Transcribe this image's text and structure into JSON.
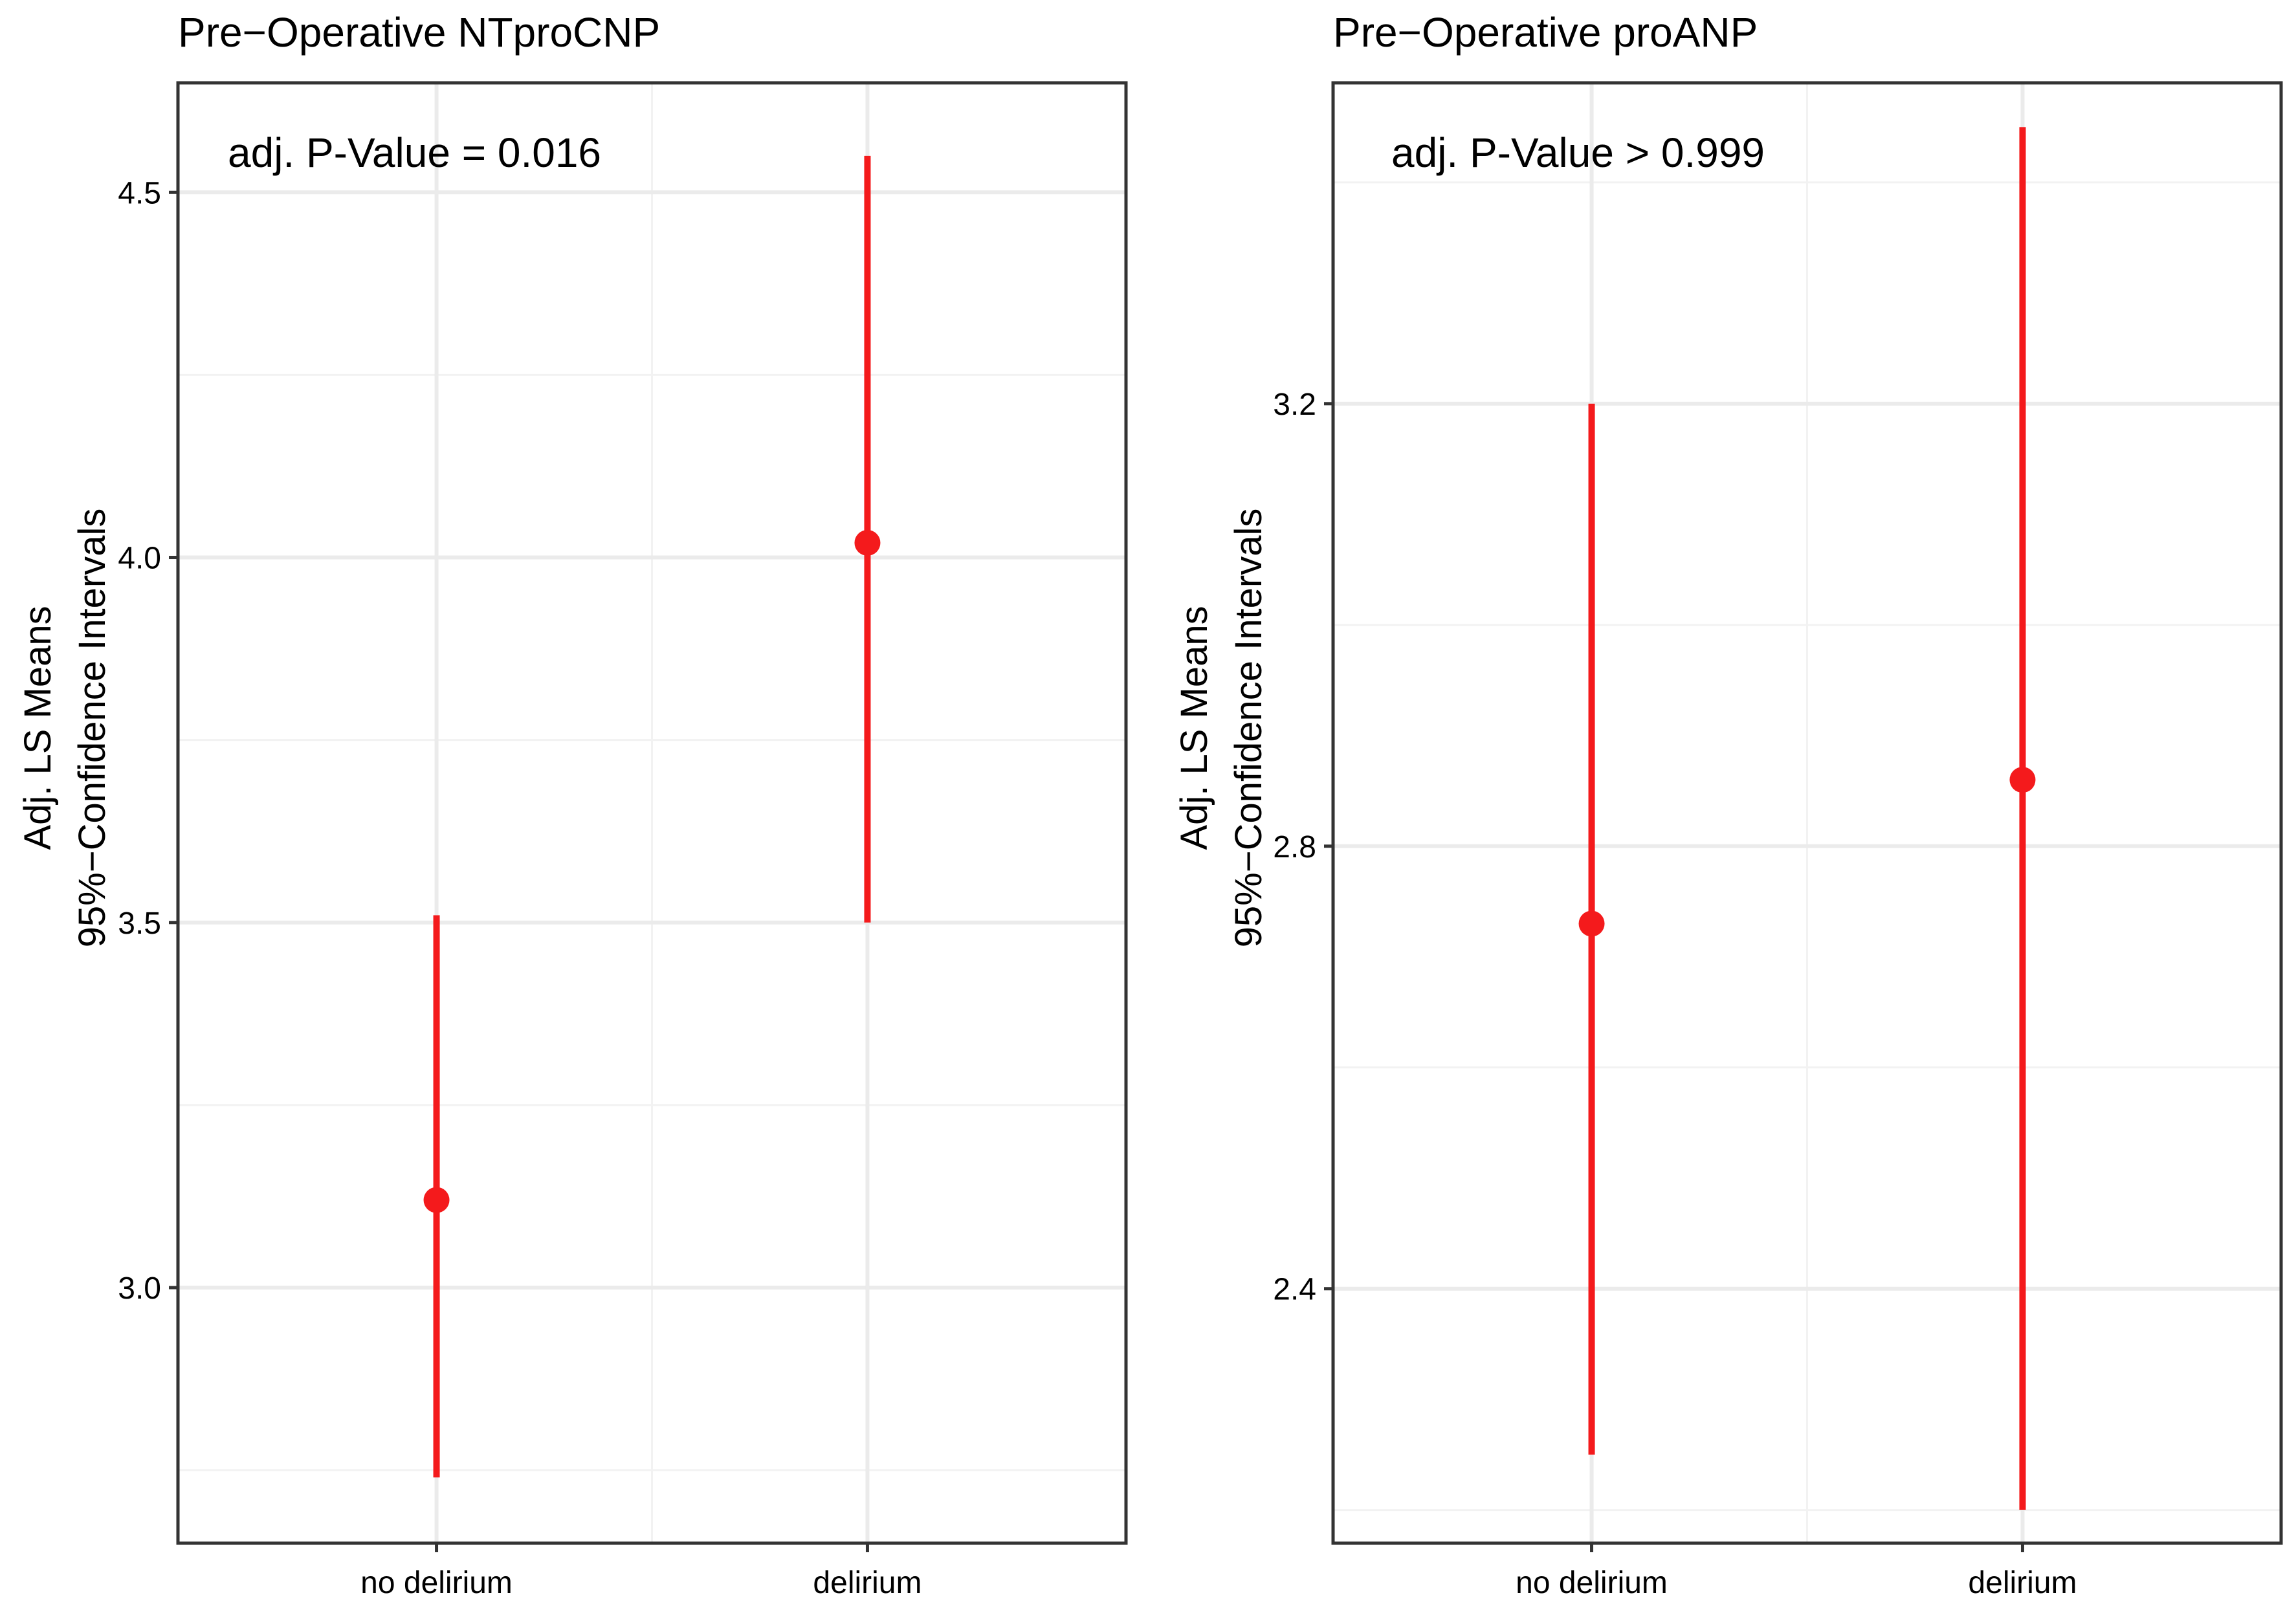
{
  "chart_data": [
    {
      "type": "errorbar",
      "title": "Pre−Operative NTproCNP",
      "annotation": "adj. P-Value = 0.016",
      "ylabel_lines": [
        "Adj. LS Means",
        "95%−Confidence Intervals"
      ],
      "categories": [
        "no delirium",
        "delirium"
      ],
      "ylim": [
        2.65,
        4.65
      ],
      "y_major_ticks": [
        3.0,
        3.5,
        4.0,
        4.5
      ],
      "y_tick_labels": [
        "3.0",
        "3.5",
        "4.0",
        "4.5"
      ],
      "y_minor_ticks": [
        2.75,
        3.25,
        3.75,
        4.25
      ],
      "grid": true,
      "series": [
        {
          "points": [
            {
              "category": "no delirium",
              "mean": 3.12,
              "lower": 2.74,
              "upper": 3.51
            },
            {
              "category": "delirium",
              "mean": 4.02,
              "lower": 3.5,
              "upper": 4.55
            }
          ]
        }
      ]
    },
    {
      "type": "errorbar",
      "title": "Pre−Operative proANP",
      "annotation": "adj. P-Value > 0.999",
      "ylabel_lines": [
        "Adj. LS Means",
        "95%−Confidence Intervals"
      ],
      "categories": [
        "no delirium",
        "delirium"
      ],
      "ylim": [
        2.17,
        3.49
      ],
      "y_major_ticks": [
        2.4,
        2.8,
        3.2
      ],
      "y_tick_labels": [
        "2.4",
        "2.8",
        "3.2"
      ],
      "y_minor_ticks": [
        2.2,
        2.6,
        3.0,
        3.4
      ],
      "grid": true,
      "series": [
        {
          "points": [
            {
              "category": "no delirium",
              "mean": 2.73,
              "lower": 2.25,
              "upper": 3.2
            },
            {
              "category": "delirium",
              "mean": 2.86,
              "lower": 2.2,
              "upper": 3.45
            }
          ]
        }
      ]
    }
  ],
  "colors": {
    "point": "#f41a1c",
    "panel_border": "#333333",
    "grid_major": "#ebebeb",
    "grid_minor": "#f2f2f2",
    "text": "#000000",
    "tick_text": "#000000"
  }
}
